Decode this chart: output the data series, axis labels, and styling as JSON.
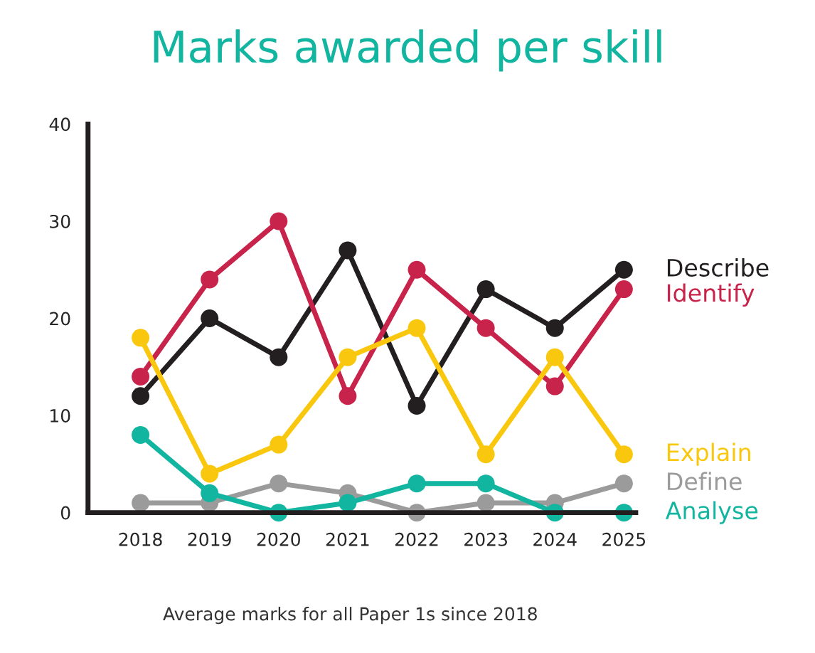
{
  "chart_data": {
    "type": "line",
    "title": "Marks awarded per skill",
    "categories": [
      "2018",
      "2019",
      "2020",
      "2021",
      "2022",
      "2023",
      "2024",
      "2025"
    ],
    "series": [
      {
        "name": "Describe",
        "color": "#231f20",
        "values": [
          12,
          20,
          16,
          27,
          11,
          23,
          19,
          25
        ]
      },
      {
        "name": "Identify",
        "color": "#c8234a",
        "values": [
          14,
          24,
          30,
          12,
          25,
          19,
          13,
          23
        ]
      },
      {
        "name": "Explain",
        "color": "#f9c80e",
        "values": [
          18,
          4,
          7,
          16,
          19,
          6,
          16,
          6
        ]
      },
      {
        "name": "Define",
        "color": "#9b9b9b",
        "values": [
          1,
          1,
          3,
          2,
          0,
          1,
          1,
          3
        ]
      },
      {
        "name": "Analyse",
        "color": "#12b5a0",
        "values": [
          8,
          2,
          0,
          1,
          3,
          3,
          0,
          0
        ]
      }
    ],
    "ylim": [
      0,
      40
    ],
    "yticks": [
      0,
      10,
      20,
      30,
      40
    ],
    "marker": "circle",
    "line_style": "solid",
    "grid": false,
    "legend": false,
    "annotations": [
      "Average marks for all Paper 1s since 2018"
    ]
  }
}
